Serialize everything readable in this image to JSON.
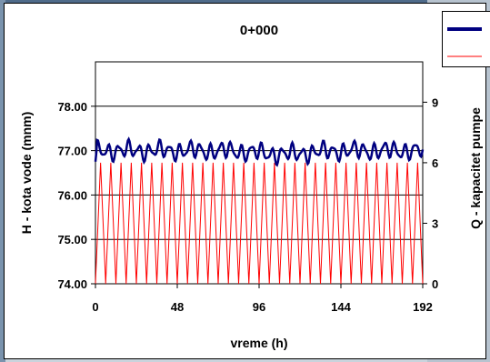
{
  "chart_data": {
    "type": "line",
    "title": "0+000",
    "xlabel": "vreme (h)",
    "ylabel": "H - kota vode (mnm)",
    "y2label": "Q - kapacitet pumpe",
    "xlim": [
      0,
      192
    ],
    "ylim": [
      74,
      79
    ],
    "y2lim": [
      0,
      11
    ],
    "x_ticks": [
      "0",
      "48",
      "96",
      "144",
      "192"
    ],
    "y_ticks": [
      "74.00",
      "75.00",
      "76.00",
      "77.00",
      "78.00"
    ],
    "y2_ticks": [
      "0",
      "3",
      "6",
      "9"
    ],
    "grid": "horizontal",
    "legend": "top-right",
    "series": [
      {
        "axis": "left",
        "color": "#000080",
        "period_h": 6,
        "mean": 77.0,
        "amplitude": 0.15,
        "range": [
          76.6,
          77.3
        ]
      },
      {
        "axis": "right",
        "color": "#ff0000",
        "period_h": 6,
        "min": 0,
        "max": 6
      }
    ]
  }
}
